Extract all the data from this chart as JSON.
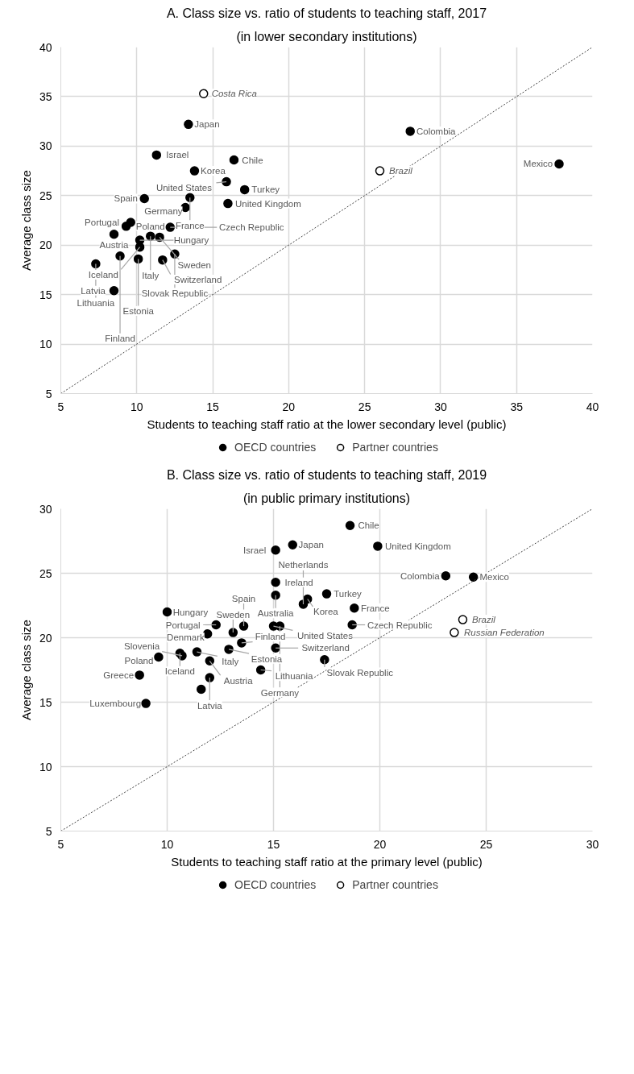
{
  "chart_data": [
    {
      "type": "scatter",
      "title": "A. Class size vs. ratio of students to teaching staff, 2017",
      "subtitle": "(in lower secondary institutions)",
      "xlabel": "Students to teaching staff ratio at the lower secondary level (public)",
      "ylabel": "Average class size",
      "xlim": [
        5,
        40
      ],
      "ylim": [
        5,
        40
      ],
      "xticks": [
        5,
        10,
        15,
        20,
        25,
        30,
        35,
        40
      ],
      "yticks": [
        5,
        10,
        15,
        20,
        25,
        30,
        35,
        40
      ],
      "grid": true,
      "legend": "bottom",
      "series": [
        {
          "name": "OECD countries",
          "color": "#000000",
          "marker": "circle",
          "x": [
            13.4,
            11.3,
            13.8,
            16.4,
            15.9,
            17.1,
            13.5,
            13.2,
            10.5,
            9.6,
            9.3,
            8.5,
            10.2,
            10.9,
            11.5,
            12.2,
            12.5,
            10.2,
            10.1,
            11.7,
            8.9,
            7.3,
            8.5,
            16.0,
            28.0,
            37.8
          ],
          "values": [
            32.2,
            29.1,
            27.5,
            28.6,
            26.4,
            25.6,
            24.8,
            23.8,
            24.7,
            22.3,
            21.9,
            21.1,
            20.5,
            20.9,
            20.8,
            21.8,
            19.1,
            19.8,
            18.6,
            18.5,
            18.9,
            18.1,
            15.4,
            24.2,
            31.5,
            28.2
          ]
        },
        {
          "name": "Partner countries",
          "color": "#ffffff",
          "marker": "circle",
          "x": [
            14.4,
            26.0
          ],
          "values": [
            35.3,
            27.5
          ]
        },
        {
          "type": "line",
          "color": "#404040",
          "line_style": "dotted",
          "x": [
            5,
            40
          ],
          "values": [
            5,
            40
          ]
        }
      ],
      "annotations": [
        {
          "text": "Japan",
          "x": 13.4,
          "y": 32.2
        },
        {
          "text": "Israel",
          "x": 11.3,
          "y": 29.1
        },
        {
          "text": "Korea",
          "x": 13.8,
          "y": 27.5
        },
        {
          "text": "Chile",
          "x": 16.4,
          "y": 28.6
        },
        {
          "text": "United States",
          "x": 15.9,
          "y": 26.4
        },
        {
          "text": "Turkey",
          "x": 17.1,
          "y": 25.6
        },
        {
          "text": "France",
          "x": 13.5,
          "y": 24.8
        },
        {
          "text": "Germany",
          "x": 13.2,
          "y": 23.8
        },
        {
          "text": "Spain",
          "x": 10.5,
          "y": 24.7
        },
        {
          "text": "Poland",
          "x": 9.6,
          "y": 22.3
        },
        {
          "text": "Portugal",
          "x": 9.3,
          "y": 21.9
        },
        {
          "text": "Austria",
          "x": 8.5,
          "y": 21.1
        },
        {
          "text": "Hungary",
          "x": 10.2,
          "y": 20.5
        },
        {
          "text": "Italy",
          "x": 10.9,
          "y": 20.9
        },
        {
          "text": "Sweden",
          "x": 11.5,
          "y": 20.8
        },
        {
          "text": "Czech Republic",
          "x": 12.2,
          "y": 21.8
        },
        {
          "text": "Slovak Republic",
          "x": 12.5,
          "y": 19.1
        },
        {
          "text": "Iceland",
          "x": 10.2,
          "y": 19.8
        },
        {
          "text": "Estonia",
          "x": 10.1,
          "y": 18.6
        },
        {
          "text": "Switzerland",
          "x": 11.7,
          "y": 18.5
        },
        {
          "text": "Finland",
          "x": 8.9,
          "y": 18.9
        },
        {
          "text": "Lithuania",
          "x": 7.3,
          "y": 18.1
        },
        {
          "text": "Latvia",
          "x": 8.5,
          "y": 15.4
        },
        {
          "text": "United Kingdom",
          "x": 16.0,
          "y": 24.2
        },
        {
          "text": "Colombia",
          "x": 28.0,
          "y": 31.5
        },
        {
          "text": "Mexico",
          "x": 37.8,
          "y": 28.2
        },
        {
          "text": "Costa Rica",
          "x": 14.4,
          "y": 35.3
        },
        {
          "text": "Brazil",
          "x": 26.0,
          "y": 27.5
        }
      ]
    },
    {
      "type": "scatter",
      "title": "B. Class size vs. ratio of students to teaching staff, 2019",
      "subtitle": "(in public primary institutions)",
      "xlabel": "Students to teaching staff ratio at the primary level (public)",
      "ylabel": "Average class size",
      "xlim": [
        5,
        30
      ],
      "ylim": [
        5,
        30
      ],
      "xticks": [
        5,
        10,
        15,
        20,
        25,
        30
      ],
      "yticks": [
        5,
        10,
        15,
        20,
        25,
        30
      ],
      "grid": true,
      "legend": "bottom",
      "series": [
        {
          "name": "OECD countries",
          "color": "#000000",
          "marker": "circle",
          "x": [
            10.0,
            12.3,
            11.9,
            10.6,
            10.7,
            9.6,
            8.7,
            11.4,
            12.0,
            12.0,
            11.6,
            9.0,
            13.1,
            13.6,
            13.5,
            12.9,
            15.1,
            15.1,
            15.1,
            15.9,
            16.6,
            16.4,
            17.5,
            15.0,
            15.3,
            15.1,
            14.4,
            17.4,
            18.6,
            19.9,
            18.8,
            18.7,
            23.1,
            24.4
          ],
          "values": [
            22.0,
            21.0,
            20.3,
            18.8,
            18.6,
            18.5,
            17.1,
            18.9,
            18.2,
            16.9,
            16.0,
            14.9,
            20.4,
            20.9,
            19.6,
            19.1,
            24.3,
            23.3,
            26.8,
            27.2,
            23.0,
            22.6,
            23.4,
            20.9,
            20.9,
            19.2,
            17.5,
            18.3,
            28.7,
            27.1,
            22.3,
            21.0,
            24.8,
            24.7
          ]
        },
        {
          "name": "Partner countries",
          "color": "#ffffff",
          "marker": "circle",
          "x": [
            23.9,
            23.5
          ],
          "values": [
            21.4,
            20.4
          ]
        },
        {
          "type": "line",
          "color": "#404040",
          "line_style": "dotted",
          "x": [
            5,
            30
          ],
          "values": [
            5,
            30
          ]
        }
      ],
      "annotations": [
        {
          "text": "Hungary",
          "x": 10.0,
          "y": 22.0
        },
        {
          "text": "Portugal",
          "x": 12.3,
          "y": 21.0
        },
        {
          "text": "Denmark",
          "x": 11.9,
          "y": 20.3
        },
        {
          "text": "Iceland",
          "x": 10.6,
          "y": 18.8
        },
        {
          "text": "Slovenia",
          "x": 10.7,
          "y": 18.6
        },
        {
          "text": "Poland",
          "x": 9.6,
          "y": 18.5
        },
        {
          "text": "Greece",
          "x": 8.7,
          "y": 17.1
        },
        {
          "text": "Italy",
          "x": 11.4,
          "y": 18.9
        },
        {
          "text": "Austria",
          "x": 12.0,
          "y": 18.2
        },
        {
          "text": "Latvia",
          "x": 12.0,
          "y": 16.9
        },
        {
          "text": "Luxembourg",
          "x": 9.0,
          "y": 14.9
        },
        {
          "text": "Sweden",
          "x": 13.1,
          "y": 20.4
        },
        {
          "text": "Spain",
          "x": 13.6,
          "y": 20.9
        },
        {
          "text": "Finland",
          "x": 13.5,
          "y": 19.6
        },
        {
          "text": "Estonia",
          "x": 12.9,
          "y": 19.1
        },
        {
          "text": "Ireland",
          "x": 15.1,
          "y": 24.3
        },
        {
          "text": "Australia",
          "x": 15.1,
          "y": 23.3
        },
        {
          "text": "Israel",
          "x": 15.1,
          "y": 26.8
        },
        {
          "text": "Japan",
          "x": 15.9,
          "y": 27.2
        },
        {
          "text": "Korea",
          "x": 16.6,
          "y": 23.0
        },
        {
          "text": "Netherlands",
          "x": 16.4,
          "y": 22.6
        },
        {
          "text": "Turkey",
          "x": 17.5,
          "y": 23.4
        },
        {
          "text": "United States",
          "x": 15.0,
          "y": 20.9
        },
        {
          "text": "Germany",
          "x": 15.3,
          "y": 20.9
        },
        {
          "text": "Switzerland",
          "x": 15.1,
          "y": 19.2
        },
        {
          "text": "Lithuania",
          "x": 14.4,
          "y": 17.5
        },
        {
          "text": "Slovak Republic",
          "x": 17.4,
          "y": 18.3
        },
        {
          "text": "Chile",
          "x": 18.6,
          "y": 28.7
        },
        {
          "text": "United Kingdom",
          "x": 19.9,
          "y": 27.1
        },
        {
          "text": "France",
          "x": 18.8,
          "y": 22.3
        },
        {
          "text": "Czech Republic",
          "x": 18.7,
          "y": 21.0
        },
        {
          "text": "Colombia",
          "x": 23.1,
          "y": 24.8
        },
        {
          "text": "Mexico",
          "x": 24.4,
          "y": 24.7
        },
        {
          "text": "Brazil",
          "x": 23.9,
          "y": 21.4
        },
        {
          "text": "Russian Federation",
          "x": 23.5,
          "y": 20.4
        }
      ]
    }
  ]
}
